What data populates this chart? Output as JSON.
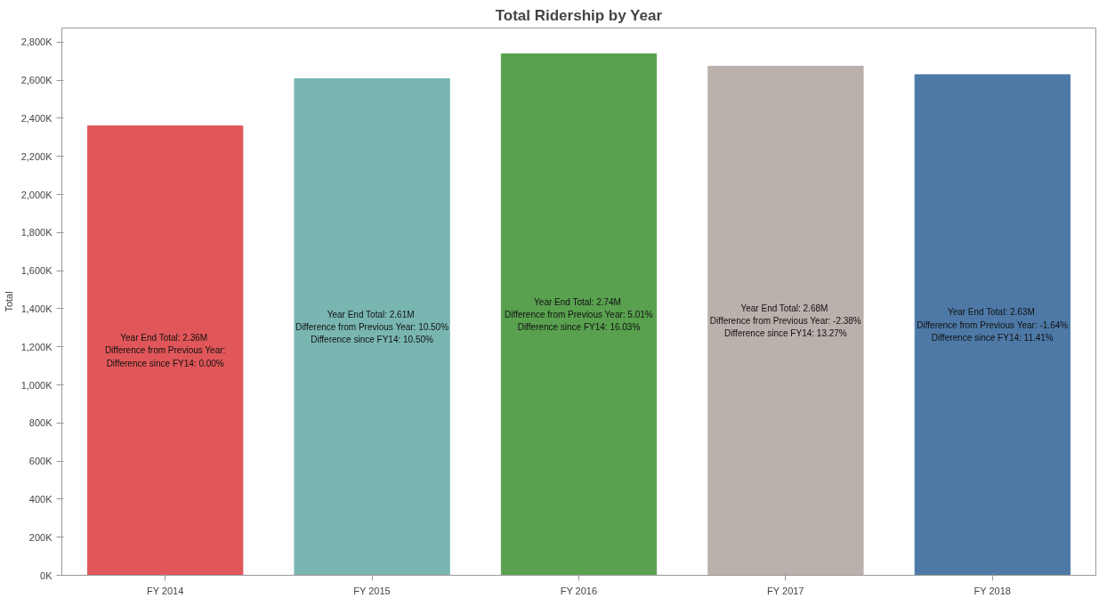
{
  "chart_data": {
    "type": "bar",
    "title": "Total Ridership by Year",
    "ylabel": "Total",
    "categories": [
      "FY 2014",
      "FY 2015",
      "FY 2016",
      "FY 2017",
      "FY 2018"
    ],
    "values": [
      2360,
      2608,
      2738,
      2673,
      2629
    ],
    "colors": [
      "#e15759",
      "#79b6b1",
      "#59a14f",
      "#bab0ac",
      "#4e79a7"
    ],
    "annotations": [
      "Year End Total:  2.36M\nDifference from Previous Year:\nDifference since FY14: 0.00%",
      "Year End Total:  2.61M\nDifference from Previous Year: 10.50%\nDifference since FY14: 10.50%",
      "Year End Total:  2.74M\nDifference from Previous Year: 5.01%\nDifference since FY14: 16.03%",
      "Year End Total:  2.68M\nDifference from Previous Year: -2.38%\nDifference since FY14: 13.27%",
      "Year End Total:  2.63M\nDifference from Previous Year: -1.64%\nDifference since FY14: 11.41%"
    ],
    "ylim": [
      0,
      2874
    ],
    "yticks": [
      {
        "value": 0,
        "label": "0K"
      },
      {
        "value": 200,
        "label": "200K"
      },
      {
        "value": 400,
        "label": "400K"
      },
      {
        "value": 600,
        "label": "600K"
      },
      {
        "value": 800,
        "label": "800K"
      },
      {
        "value": 1000,
        "label": "1,000K"
      },
      {
        "value": 1200,
        "label": "1,200K"
      },
      {
        "value": 1400,
        "label": "1,400K"
      },
      {
        "value": 1600,
        "label": "1,600K"
      },
      {
        "value": 1800,
        "label": "1,800K"
      },
      {
        "value": 2000,
        "label": "2,000K"
      },
      {
        "value": 2200,
        "label": "2,200K"
      },
      {
        "value": 2400,
        "label": "2,400K"
      },
      {
        "value": 2600,
        "label": "2,600K"
      },
      {
        "value": 2800,
        "label": "2,800K"
      }
    ],
    "grid": false
  }
}
